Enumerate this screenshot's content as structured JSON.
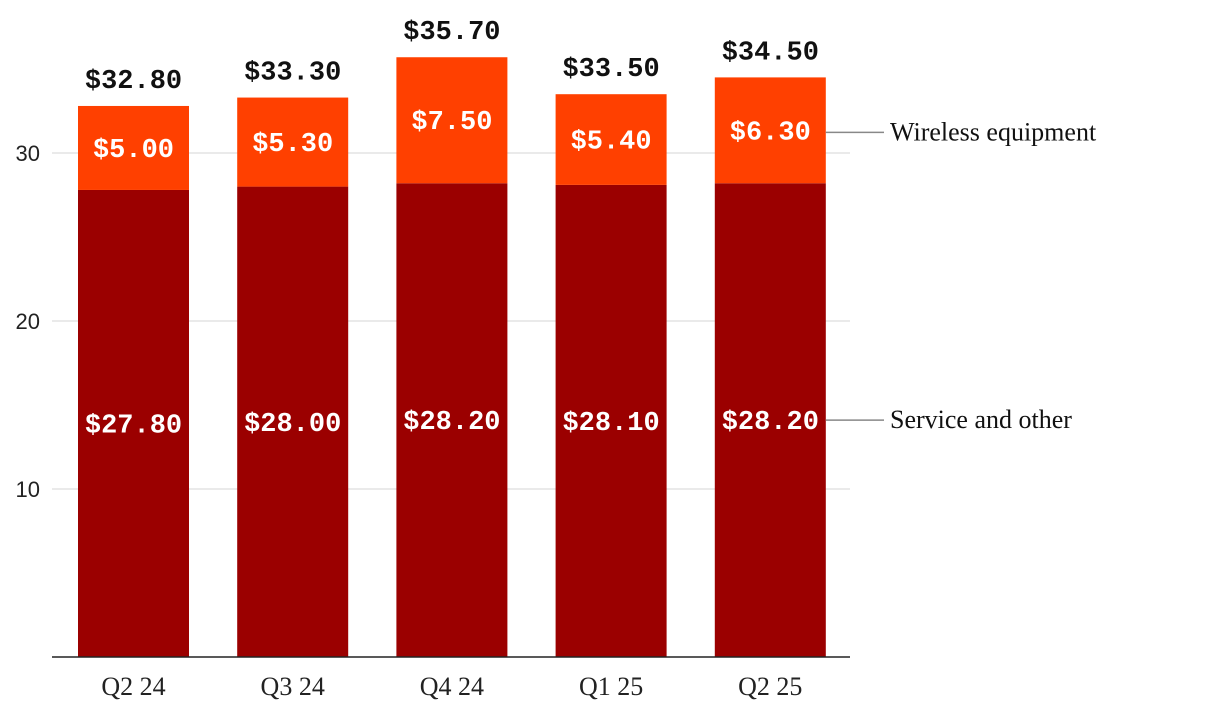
{
  "chart_data": {
    "type": "bar",
    "stacked": true,
    "title": "",
    "xlabel": "",
    "ylabel": "",
    "ylim": [
      0,
      37
    ],
    "yticks": [
      10,
      20,
      30
    ],
    "grid": true,
    "categories": [
      "Q2 24",
      "Q3 24",
      "Q4 24",
      "Q1 25",
      "Q2 25"
    ],
    "series": [
      {
        "name": "Service and other",
        "color": "#9b0000",
        "values": [
          27.8,
          28.0,
          28.2,
          28.1,
          28.2
        ],
        "labels": [
          "$27.80",
          "$28.00",
          "$28.20",
          "$28.10",
          "$28.20"
        ]
      },
      {
        "name": "Wireless equipment",
        "color": "#ff4000",
        "values": [
          5.0,
          5.3,
          7.5,
          5.4,
          6.3
        ],
        "labels": [
          "$5.00",
          "$5.30",
          "$7.50",
          "$5.40",
          "$6.30"
        ]
      }
    ],
    "totals": [
      32.8,
      33.3,
      35.7,
      33.5,
      34.5
    ],
    "total_labels": [
      "$32.80",
      "$33.30",
      "$35.70",
      "$33.50",
      "$34.50"
    ],
    "legend_placement": "right, direct labels"
  }
}
